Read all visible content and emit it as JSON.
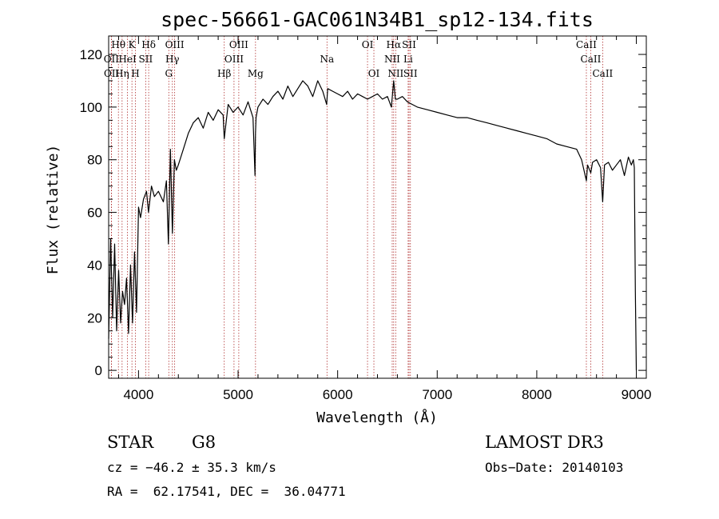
{
  "chart_data": {
    "type": "line",
    "title": "spec-56661-GAC061N34B1_sp12-134.fits",
    "xlabel": "Wavelength (Å)",
    "ylabel": "Flux (relative)",
    "xlim": [
      3700,
      9100
    ],
    "ylim": [
      -3,
      127
    ],
    "xticks": [
      4000,
      5000,
      6000,
      7000,
      8000,
      9000
    ],
    "yticks": [
      0,
      20,
      40,
      60,
      80,
      100,
      120
    ],
    "series": [
      {
        "name": "flux",
        "x": [
          3700,
          3720,
          3740,
          3760,
          3780,
          3800,
          3820,
          3840,
          3860,
          3880,
          3900,
          3920,
          3940,
          3960,
          3980,
          4000,
          4020,
          4050,
          4080,
          4100,
          4130,
          4160,
          4200,
          4250,
          4280,
          4300,
          4320,
          4340,
          4360,
          4380,
          4400,
          4450,
          4500,
          4550,
          4600,
          4650,
          4700,
          4750,
          4800,
          4850,
          4861,
          4900,
          4950,
          5000,
          5050,
          5100,
          5150,
          5170,
          5175,
          5180,
          5200,
          5250,
          5300,
          5350,
          5400,
          5450,
          5500,
          5550,
          5600,
          5650,
          5700,
          5750,
          5800,
          5850,
          5890,
          5900,
          5950,
          6000,
          6050,
          6100,
          6150,
          6200,
          6250,
          6300,
          6350,
          6400,
          6450,
          6500,
          6540,
          6563,
          6580,
          6600,
          6650,
          6700,
          6750,
          6800,
          6900,
          7000,
          7100,
          7200,
          7300,
          7400,
          7500,
          7600,
          7700,
          7800,
          7900,
          8000,
          8100,
          8200,
          8300,
          8400,
          8450,
          8498,
          8510,
          8542,
          8560,
          8600,
          8640,
          8662,
          8680,
          8720,
          8760,
          8800,
          8840,
          8880,
          8920,
          8950,
          8970,
          8980,
          8990,
          9000
        ],
        "y": [
          12,
          50,
          20,
          48,
          15,
          38,
          18,
          30,
          25,
          35,
          14,
          40,
          18,
          45,
          22,
          62,
          58,
          65,
          68,
          60,
          70,
          66,
          68,
          64,
          72,
          48,
          84,
          52,
          80,
          76,
          78,
          84,
          90,
          94,
          96,
          92,
          98,
          95,
          99,
          97,
          88,
          101,
          98,
          100,
          97,
          102,
          96,
          74,
          90,
          96,
          100,
          103,
          101,
          104,
          106,
          103,
          108,
          104,
          107,
          110,
          108,
          104,
          110,
          106,
          101,
          107,
          106,
          105,
          104,
          106,
          103,
          105,
          104,
          103,
          104,
          105,
          103,
          104,
          100,
          110,
          103,
          103,
          104,
          102,
          101,
          100,
          99,
          98,
          97,
          96,
          96,
          95,
          94,
          93,
          92,
          91,
          90,
          89,
          88,
          86,
          85,
          84,
          80,
          72,
          78,
          75,
          79,
          80,
          77,
          64,
          78,
          79,
          76,
          78,
          80,
          74,
          81,
          78,
          80,
          77,
          30,
          0
        ]
      }
    ],
    "annotations": {
      "spectral_lines": [
        {
          "label": "Hθ",
          "wave": 3798,
          "row": 1
        },
        {
          "label": "OII",
          "wave": 3727,
          "row": 2
        },
        {
          "label": "OII",
          "wave": 3729,
          "row": 3
        },
        {
          "label": "Hη",
          "wave": 3835,
          "row": 3
        },
        {
          "label": "HeI",
          "wave": 3889,
          "row": 2
        },
        {
          "label": "K",
          "wave": 3934,
          "row": 1
        },
        {
          "label": "H",
          "wave": 3969,
          "row": 3
        },
        {
          "label": "SII",
          "wave": 4072,
          "row": 2
        },
        {
          "label": "Hδ",
          "wave": 4102,
          "row": 1
        },
        {
          "label": "OIII",
          "wave": 4363,
          "row": 1
        },
        {
          "label": "Hγ",
          "wave": 4340,
          "row": 2
        },
        {
          "label": "G",
          "wave": 4304,
          "row": 3
        },
        {
          "label": "Hβ",
          "wave": 4861,
          "row": 3
        },
        {
          "label": "OIII",
          "wave": 5007,
          "row": 1
        },
        {
          "label": "OIII",
          "wave": 4959,
          "row": 2
        },
        {
          "label": "Mg",
          "wave": 5175,
          "row": 3
        },
        {
          "label": "Na",
          "wave": 5893,
          "row": 2
        },
        {
          "label": "OI",
          "wave": 6300,
          "row": 1
        },
        {
          "label": "OI",
          "wave": 6364,
          "row": 3
        },
        {
          "label": "Hα",
          "wave": 6563,
          "row": 1
        },
        {
          "label": "NII",
          "wave": 6548,
          "row": 2
        },
        {
          "label": "NII",
          "wave": 6583,
          "row": 3
        },
        {
          "label": "SII",
          "wave": 6717,
          "row": 1
        },
        {
          "label": "Li",
          "wave": 6708,
          "row": 2
        },
        {
          "label": "SII",
          "wave": 6731,
          "row": 3
        },
        {
          "label": "CaII",
          "wave": 8498,
          "row": 1
        },
        {
          "label": "CaII",
          "wave": 8542,
          "row": 2
        },
        {
          "label": "CaII",
          "wave": 8662,
          "row": 3
        }
      ]
    }
  },
  "info": {
    "object_class": "STAR",
    "subclass": "G8",
    "survey": "LAMOST DR3",
    "cz": "cz = −46.2 ± 35.3 km/s",
    "obs_date": "Obs−Date: 20140103",
    "coords": "RA =  62.17541, DEC =  36.04771"
  },
  "colors": {
    "line_marker": "#b03030",
    "spectrum": "#000000",
    "axes": "#000000"
  }
}
